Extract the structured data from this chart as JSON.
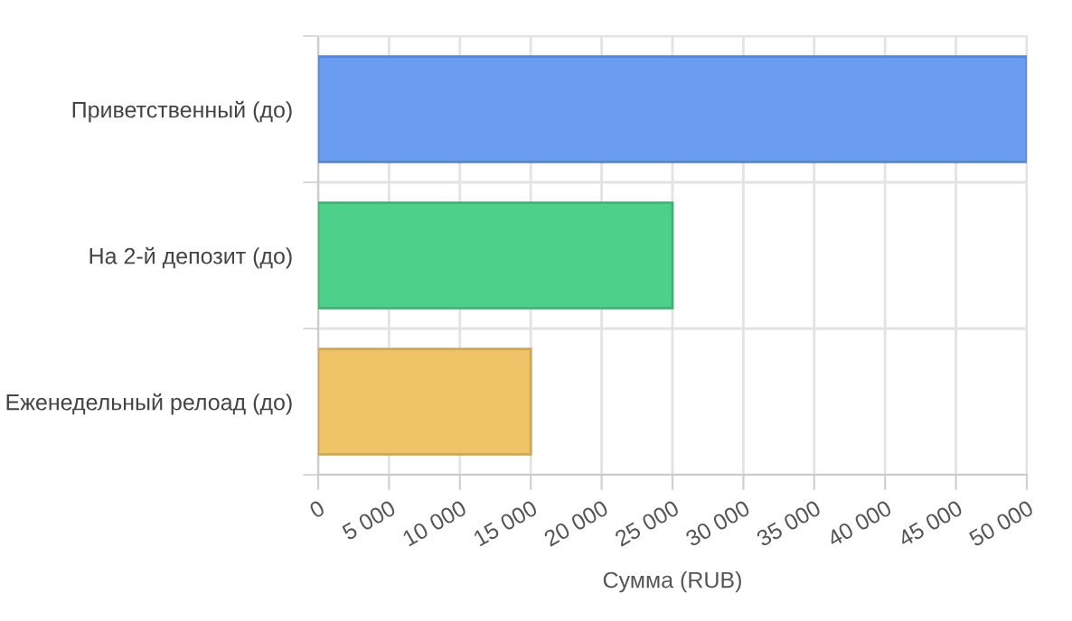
{
  "chart_data": {
    "type": "bar",
    "orientation": "horizontal",
    "xlabel": "Сумма (RUB)",
    "categories": [
      "Приветственный (до)",
      "На 2-й депозит (до)",
      "Еженедельный релоад (до)"
    ],
    "values": [
      50000,
      25000,
      15000
    ],
    "colors": [
      "#6a9cf2",
      "#4cd08a",
      "#efc466"
    ],
    "xlim": [
      0,
      50000
    ],
    "xticks": [
      0,
      {
        "value": 5000,
        "label": "5 000"
      },
      {
        "value": 10000,
        "label": "10 000"
      },
      {
        "value": 15000,
        "label": "15 000"
      },
      {
        "value": 20000,
        "label": "20 000"
      },
      {
        "value": 25000,
        "label": "25 000"
      },
      {
        "value": 30000,
        "label": "30 000"
      },
      {
        "value": 35000,
        "label": "35 000"
      },
      {
        "value": 40000,
        "label": "40 000"
      },
      {
        "value": 45000,
        "label": "45 000"
      },
      {
        "value": 50000,
        "label": "50 000"
      }
    ],
    "grid": true
  }
}
